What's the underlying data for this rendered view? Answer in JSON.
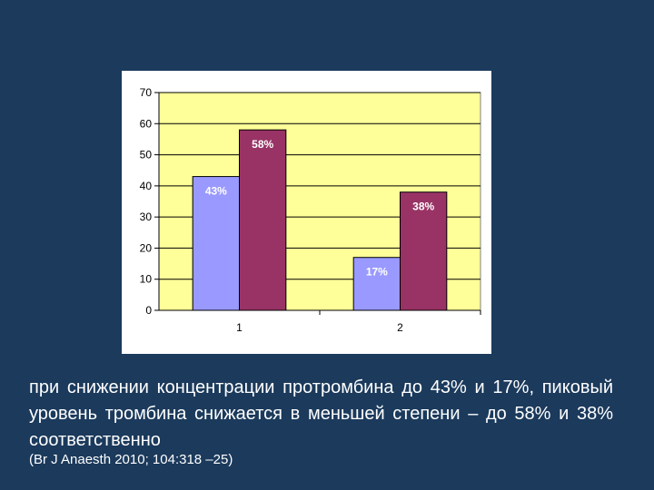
{
  "chart_data": {
    "type": "bar",
    "categories": [
      "1",
      "2"
    ],
    "series": [
      {
        "values": [
          43,
          17
        ],
        "labels": [
          "43%",
          "17%"
        ],
        "color": "#9999ff"
      },
      {
        "values": [
          58,
          38
        ],
        "labels": [
          "58%",
          "38%"
        ],
        "color": "#993366"
      }
    ],
    "yticks": [
      0,
      10,
      20,
      30,
      40,
      50,
      60,
      70
    ],
    "ylim": [
      0,
      70
    ],
    "grid": true,
    "plot_background": "#ffff99"
  },
  "caption": "при снижении концентрации протромбина до 43% и 17%, пиковый уровень тромбина снижается в меньшей степени – до 58% и 38% соответственно",
  "citation": "(Br J Anaesth 2010; 104:318 –25)"
}
